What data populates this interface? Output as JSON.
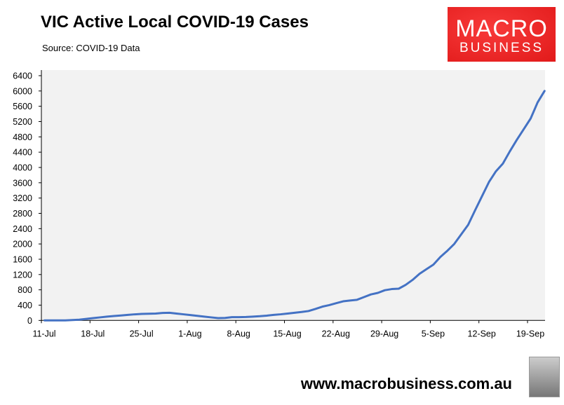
{
  "chart_data": {
    "type": "line",
    "title": "VIC Active Local COVID-19 Cases",
    "subtitle": "Source: COVID-19 Data",
    "xlabel": "",
    "ylabel": "",
    "ylim": [
      0,
      6400
    ],
    "yticks": [
      "0",
      "400",
      "800",
      "1200",
      "1600",
      "2000",
      "2400",
      "2800",
      "3200",
      "3600",
      "4000",
      "4400",
      "4800",
      "5200",
      "5600",
      "6000",
      "6400"
    ],
    "xticks": [
      "11-Jul",
      "18-Jul",
      "25-Jul",
      "1-Aug",
      "8-Aug",
      "15-Aug",
      "22-Aug",
      "29-Aug",
      "5-Sep",
      "12-Sep",
      "19-Sep"
    ],
    "x_start": "11-Jul",
    "x_end": "21-Sep",
    "series": [
      {
        "name": "Active local cases",
        "color": "#4472C4",
        "values": [
          0,
          0,
          0,
          0,
          10,
          20,
          40,
          60,
          80,
          100,
          115,
          130,
          145,
          160,
          170,
          175,
          180,
          195,
          200,
          180,
          160,
          140,
          120,
          100,
          80,
          60,
          65,
          85,
          85,
          90,
          100,
          110,
          125,
          145,
          160,
          180,
          200,
          220,
          245,
          300,
          360,
          400,
          450,
          500,
          520,
          540,
          610,
          680,
          720,
          790,
          820,
          830,
          930,
          1060,
          1220,
          1340,
          1460,
          1660,
          1820,
          2000,
          2250,
          2500,
          2880,
          3250,
          3620,
          3900,
          4100,
          4420,
          4720,
          5000,
          5280,
          5700,
          6000
        ]
      }
    ],
    "grid": false,
    "legend": "none"
  },
  "logo": {
    "line1": "MACRO",
    "line2": "BUSINESS"
  },
  "footer": {
    "url": "www.macrobusiness.com.au"
  }
}
